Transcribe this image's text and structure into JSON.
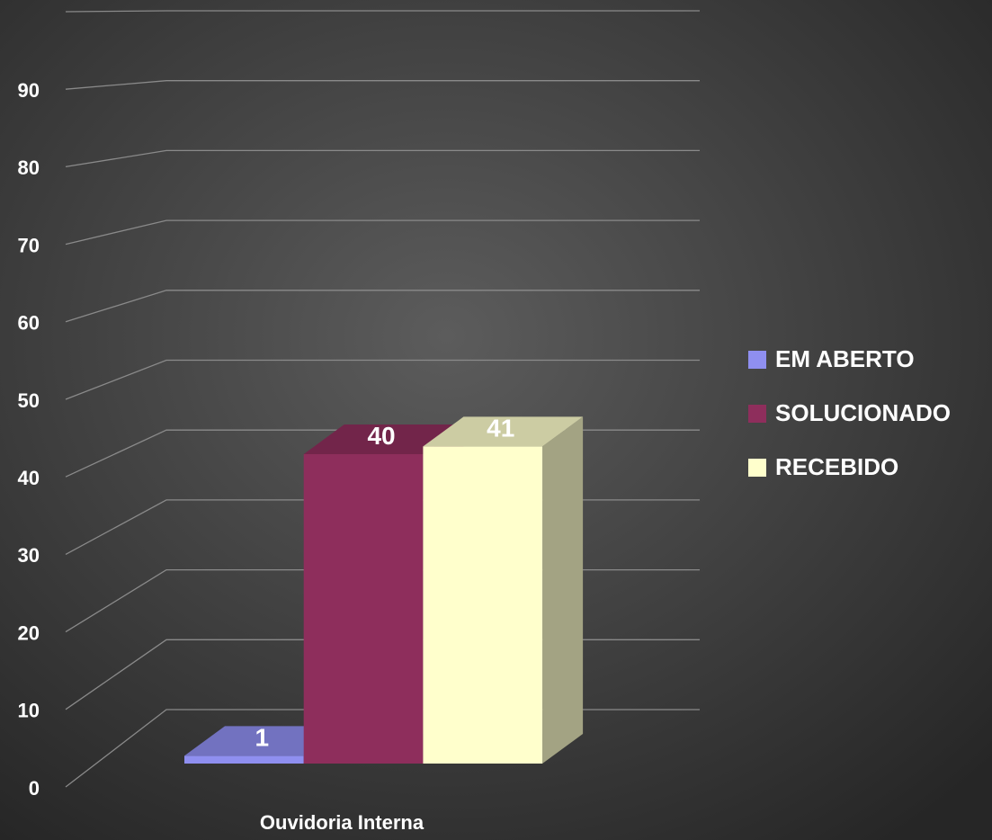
{
  "chart_data": {
    "type": "bar3d",
    "categories": [
      "Ouvidoria Interna"
    ],
    "series": [
      {
        "name": "EM ABERTO",
        "color": "#8f8ff0",
        "values": [
          1
        ]
      },
      {
        "name": "SOLUCIONADO",
        "color": "#8e2e5c",
        "values": [
          40
        ]
      },
      {
        "name": "RECEBIDO",
        "color": "#ffffcc",
        "values": [
          41
        ]
      }
    ],
    "ylim": [
      0,
      100
    ],
    "yticks": [
      0,
      10,
      20,
      30,
      40,
      50,
      60,
      70,
      80,
      90
    ],
    "grid": true,
    "legend": "right"
  }
}
